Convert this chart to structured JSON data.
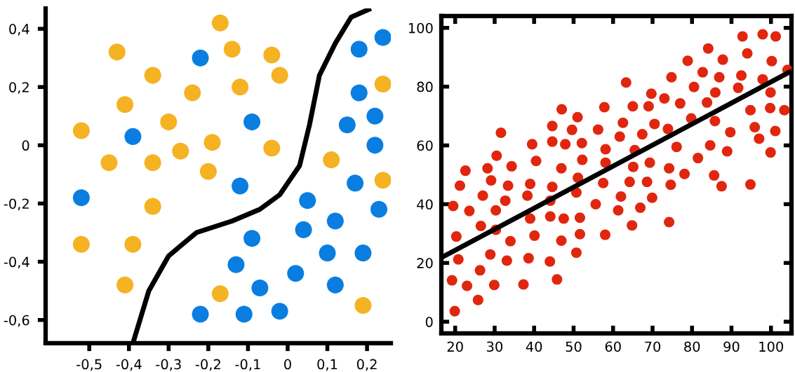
{
  "chart_data": [
    {
      "type": "scatter",
      "grid": false,
      "xlim": [
        -0.61,
        0.26
      ],
      "ylim": [
        -0.68,
        0.47
      ],
      "xticks": [
        {
          "value": -0.5,
          "label": "-0,5"
        },
        {
          "value": -0.4,
          "label": "-0,4"
        },
        {
          "value": -0.3,
          "label": "-0,3"
        },
        {
          "value": -0.2,
          "label": "-0,2"
        },
        {
          "value": -0.1,
          "label": "-0,1"
        },
        0,
        {
          "value": 0.1,
          "label": "0,1"
        },
        {
          "value": 0.2,
          "label": "0,2"
        }
      ],
      "yticks": [
        {
          "value": 0.4,
          "label": "0,4"
        },
        {
          "value": 0.2,
          "label": "0,2"
        },
        0,
        {
          "value": -0.2,
          "label": "-0,2"
        },
        {
          "value": -0.4,
          "label": "-0,4"
        },
        {
          "value": -0.6,
          "label": "-0,6"
        }
      ],
      "series": [
        {
          "marker": "circle",
          "color": "#f5b223",
          "x": [
            -0.17,
            -0.43,
            -0.14,
            -0.04,
            -0.34,
            -0.02,
            -0.12,
            -0.24,
            -0.41,
            -0.3,
            -0.52,
            -0.19,
            -0.27,
            -0.04,
            -0.45,
            -0.34,
            -0.2,
            0.11,
            -0.34,
            -0.52,
            -0.39,
            -0.41,
            -0.17,
            0.24,
            0.24,
            0.19
          ],
          "values": [
            0.42,
            0.32,
            0.33,
            0.31,
            0.24,
            0.24,
            0.2,
            0.18,
            0.14,
            0.08,
            0.05,
            0.01,
            -0.02,
            -0.01,
            -0.06,
            -0.06,
            -0.09,
            -0.05,
            -0.21,
            -0.34,
            -0.34,
            -0.48,
            -0.51,
            0.21,
            -0.12,
            -0.55
          ]
        },
        {
          "marker": "circle",
          "color": "#0a7ee0",
          "x": [
            -0.22,
            -0.39,
            -0.09,
            -0.12,
            -0.52,
            0.24,
            0.18,
            0.18,
            0.22,
            0.15,
            0.22,
            0.17,
            0.05,
            0.23,
            -0.09,
            0.04,
            0.12,
            -0.13,
            0.1,
            0.19,
            0.02,
            -0.07,
            0.12,
            -0.22,
            -0.11,
            -0.02
          ],
          "values": [
            0.3,
            0.03,
            0.08,
            -0.14,
            -0.18,
            0.37,
            0.33,
            0.18,
            0.1,
            0.07,
            0.0,
            -0.13,
            -0.19,
            -0.22,
            -0.32,
            -0.29,
            -0.26,
            -0.41,
            -0.37,
            -0.37,
            -0.44,
            -0.49,
            -0.48,
            -0.58,
            -0.58,
            -0.57
          ]
        },
        {
          "type": "line",
          "color": "#000000",
          "x": [
            -0.39,
            -0.35,
            -0.3,
            -0.23,
            -0.14,
            -0.07,
            -0.02,
            0.03,
            0.055,
            0.08,
            0.12,
            0.16,
            0.21
          ],
          "values": [
            -0.68,
            -0.5,
            -0.38,
            -0.3,
            -0.26,
            -0.22,
            -0.17,
            -0.07,
            0.07,
            0.24,
            0.35,
            0.44,
            0.47
          ]
        }
      ]
    },
    {
      "type": "scatter",
      "grid": false,
      "xlim": [
        16.5,
        105.2
      ],
      "ylim": [
        -4,
        104
      ],
      "xticks": [
        20,
        30,
        40,
        50,
        60,
        70,
        80,
        90,
        100
      ],
      "yticks": [
        0,
        20,
        40,
        60,
        80,
        100
      ],
      "series": [
        {
          "marker": "circle",
          "color": "#e0260e",
          "x": [
            92.8,
            97.9,
            101.2,
            84.1,
            78.9,
            87.8,
            94.0,
            100.2,
            104.2,
            63.3,
            74.8,
            82.7,
            86.9,
            92.5,
            80.5,
            91.7,
            97.9,
            69.7,
            73.0,
            85.9,
            99.9,
            57.8,
            65.0,
            69.0,
            77.0,
            83.8,
            94.8,
            99.8,
            103.4,
            47.0,
            51.0,
            31.6,
            44.6,
            49.6,
            56.2,
            62.5,
            70.5,
            73.9,
            79.8,
            85.8,
            95.9,
            101.1,
            61.7,
            67.4,
            89.7,
            97.0,
            39.5,
            44.6,
            47.9,
            52.1,
            58.1,
            65.5,
            76.1,
            84.6,
            88.9,
            99.9,
            30.5,
            40.5,
            52.2,
            58.1,
            69.3,
            81.5,
            22.6,
            28.2,
            34.3,
            46.9,
            65.1,
            74.2,
            78.1,
            85.6,
            29.1,
            51.1,
            21.2,
            33.4,
            39.0,
            44.6,
            57.5,
            64.2,
            68.6,
            74.6,
            87.5,
            94.8,
            50.7,
            19.5,
            23.6,
            27.0,
            32.7,
            30.3,
            38.3,
            44.1,
            39.0,
            44.1,
            47.5,
            51.6,
            55.6,
            61.3,
            62.0,
            66.9,
            69.9,
            74.2,
            64.8,
            26.5,
            30.3,
            20.3,
            34.0,
            40.1,
            46.9,
            51.6,
            58.0,
            20.8,
            28.9,
            33.1,
            38.6,
            44.0,
            50.7,
            26.3,
            19.2,
            23.0,
            29.9,
            37.3,
            45.8,
            25.8,
            19.9
          ],
          "values": [
            97.1,
            97.8,
            97.1,
            93.0,
            88.8,
            89.2,
            91.3,
            88.7,
            85.7,
            81.4,
            83.2,
            84.9,
            83.2,
            83.8,
            79.9,
            79.6,
            82.5,
            77.6,
            76.0,
            78.0,
            78.0,
            73.0,
            73.3,
            73.3,
            74.3,
            74.6,
            72.0,
            72.7,
            72.0,
            72.3,
            69.6,
            64.3,
            66.6,
            65.3,
            65.4,
            67.7,
            67.3,
            65.6,
            69.2,
            68.3,
            66.2,
            64.9,
            63.0,
            63.8,
            64.5,
            62.3,
            60.4,
            61.3,
            60.4,
            60.8,
            58.7,
            58.4,
            59.5,
            60.0,
            58.0,
            57.6,
            56.5,
            54.7,
            55.1,
            54.1,
            54.1,
            55.7,
            51.4,
            52.2,
            52.9,
            52.2,
            52.7,
            52.2,
            50.3,
            49.8,
            48.1,
            49.0,
            46.3,
            46.3,
            46.9,
            45.9,
            47.2,
            47.6,
            47.6,
            46.6,
            46.1,
            46.7,
            44.0,
            39.4,
            37.7,
            42.9,
            41.2,
            37.9,
            42.9,
            41.2,
            35.1,
            35.8,
            35.1,
            35.4,
            40.0,
            37.9,
            42.6,
            38.8,
            42.2,
            33.9,
            32.8,
            32.6,
            31.3,
            29.0,
            27.4,
            29.3,
            27.6,
            29.8,
            29.6,
            21.2,
            22.9,
            20.8,
            21.6,
            20.5,
            23.5,
            17.5,
            14.1,
            12.2,
            12.5,
            12.7,
            14.4,
            7.4,
            3.6
          ]
        },
        {
          "type": "line",
          "color": "#000000",
          "x": [
            16.5,
            105.2
          ],
          "values": [
            21.8,
            85.3
          ]
        }
      ]
    }
  ]
}
